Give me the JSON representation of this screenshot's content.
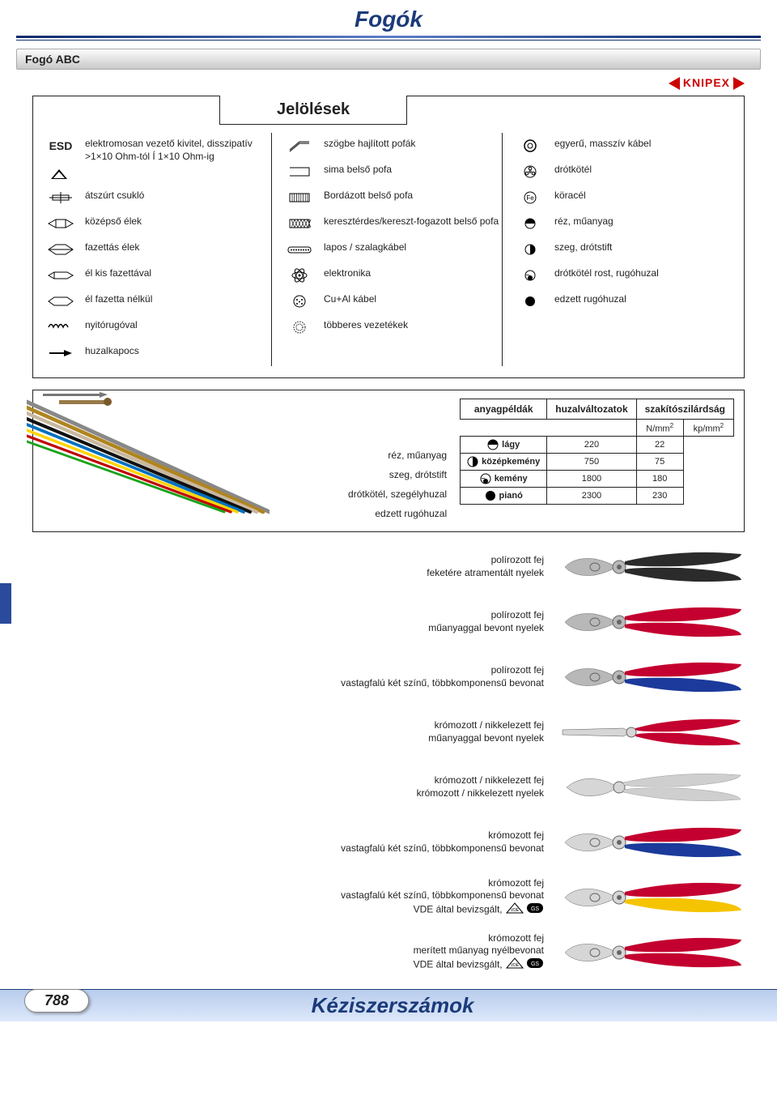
{
  "header": {
    "title": "Fogók"
  },
  "section": {
    "title": "Fogó ABC"
  },
  "brand": {
    "name": "KNIPEX",
    "color": "#c1001f"
  },
  "legend": {
    "title": "Jelölések",
    "col1": [
      {
        "icon": "esd",
        "text": "elektromosan vezető kivitel, disszipatív\n>1×10 Ohm-tól Í 1×10 Ohm-ig",
        "label": "ESD"
      },
      {
        "icon": "joint",
        "text": "átszúrt csukló"
      },
      {
        "icon": "edge-mid",
        "text": "középső élek"
      },
      {
        "icon": "edge-facet",
        "text": "fazettás élek"
      },
      {
        "icon": "edge-small",
        "text": "él kis fazettával"
      },
      {
        "icon": "edge-none",
        "text": "él fazetta nélkül"
      },
      {
        "icon": "spring",
        "text": "nyitórugóval"
      },
      {
        "icon": "clamp",
        "text": "huzalkapocs"
      }
    ],
    "col2": [
      {
        "icon": "angled-jaw",
        "text": "szögbe hajlított pofák"
      },
      {
        "icon": "smooth-jaw",
        "text": "sima belső pofa"
      },
      {
        "icon": "ribbed-jaw",
        "text": "Bordázott belső pofa"
      },
      {
        "icon": "cross-jaw",
        "text": "keresztérdes/kereszt-fogazott belső pofa"
      },
      {
        "icon": "flat-cable",
        "text": "lapos / szalagkábel"
      },
      {
        "icon": "atom",
        "text": "elektronika"
      },
      {
        "icon": "cual",
        "text": "Cu+Al kábel"
      },
      {
        "icon": "multi",
        "text": "többeres vezetékek"
      }
    ],
    "col3": [
      {
        "icon": "single-cable",
        "text": "egyerű, masszív kábel"
      },
      {
        "icon": "strand",
        "text": "drótkötél"
      },
      {
        "icon": "fe",
        "text": "köracél"
      },
      {
        "icon": "half-top",
        "text": "réz, műanyag"
      },
      {
        "icon": "half-right",
        "text": "szeg, drótstift"
      },
      {
        "icon": "small-dot",
        "text": "drótkötél rost, rugóhuzal"
      },
      {
        "icon": "full",
        "text": "edzett rugóhuzal"
      }
    ]
  },
  "materials": {
    "header_left": "anyagpéldák",
    "header_mid": "huzalváltozatok",
    "header_right": "szakítószilárdság",
    "unit_nmm": "N/mm",
    "unit_kpmm": "kp/mm",
    "labels": [
      "réz, műanyag",
      "szeg, drótstift",
      "drótkötél, szegélyhuzal",
      "edzett rugóhuzal"
    ],
    "rows": [
      {
        "icon": "half-top",
        "name": "lágy",
        "nmm": 220,
        "kpmm": 22
      },
      {
        "icon": "half-right",
        "name": "középkemény",
        "nmm": 750,
        "kpmm": 75
      },
      {
        "icon": "small-dot",
        "name": "kemény",
        "nmm": 1800,
        "kpmm": 180
      },
      {
        "icon": "full",
        "name": "pianó",
        "nmm": 2300,
        "kpmm": 230
      }
    ],
    "wire_colors": [
      "#888888",
      "#b0851f",
      "#c9b8a0",
      "#111111",
      "#0070c0",
      "#ffd400",
      "#c00000",
      "#1aa31a"
    ]
  },
  "pliers": [
    {
      "l1": "polírozott fej",
      "l2": "feketére atramentált nyelek",
      "colors": {
        "handle1": "#2b2b2b",
        "handle2": "#2b2b2b",
        "head": "#b8b8b8"
      }
    },
    {
      "l1": "polírozott fej",
      "l2": "műanyaggal bevont nyelek",
      "colors": {
        "handle1": "#c3002f",
        "handle2": "#c3002f",
        "head": "#b8b8b8"
      }
    },
    {
      "l1": "polírozott fej",
      "l2": "vastagfalú két színű, többkomponensű bevonat",
      "colors": {
        "handle1": "#c3002f",
        "handle2": "#1b3a9b",
        "head": "#b8b8b8"
      }
    },
    {
      "l1": "krómozott / nikkelezett fej",
      "l2": "műanyaggal bevont nyelek",
      "colors": {
        "handle1": "#c3002f",
        "handle2": "#c3002f",
        "head": "#d6d6d6"
      },
      "type": "needle"
    },
    {
      "l1": "krómozott / nikkelezett fej",
      "l2": "krómozott / nikkelezett nyelek",
      "colors": {
        "handle1": "#cfcfcf",
        "handle2": "#cfcfcf",
        "head": "#d6d6d6"
      },
      "type": "diag"
    },
    {
      "l1": "krómozott fej",
      "l2": "vastagfalú két színű, többkomponensű bevonat",
      "colors": {
        "handle1": "#c3002f",
        "handle2": "#1b3a9b",
        "head": "#d6d6d6"
      }
    },
    {
      "l1": "krómozott fej",
      "l2": "vastagfalú két színű, többkomponensű bevonat",
      "l3": "VDE által bevizsgált,",
      "vde": true,
      "colors": {
        "handle1": "#c3002f",
        "handle2": "#f5c400",
        "head": "#d6d6d6"
      }
    },
    {
      "l1": "krómozott fej",
      "l2": "merített műanyag nyélbevonat",
      "l3": "VDE által bevizsgált,",
      "vde": true,
      "colors": {
        "handle1": "#c3002f",
        "handle2": "#c3002f",
        "head": "#d6d6d6"
      }
    }
  ],
  "footer": {
    "page": "788",
    "title": "Kéziszerszámok"
  }
}
